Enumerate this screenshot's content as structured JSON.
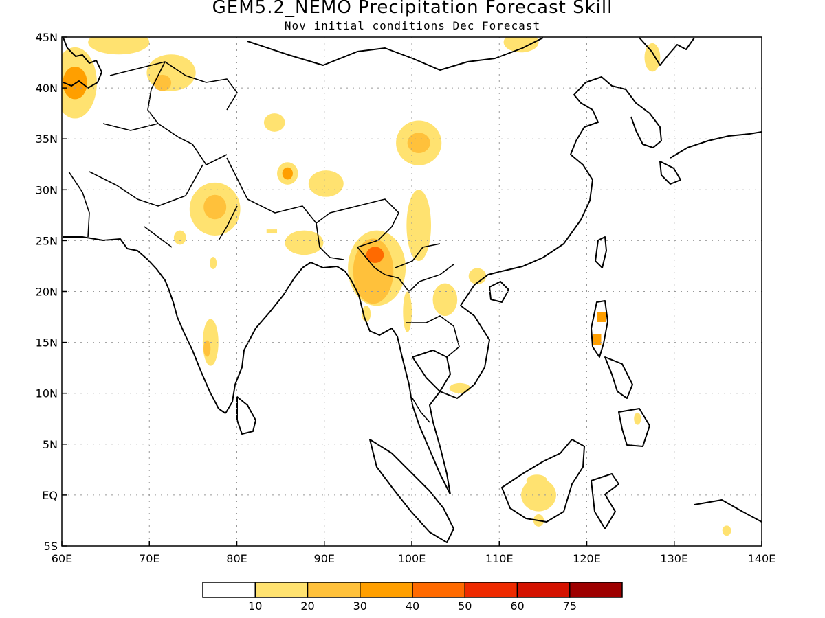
{
  "title": "GEM5.2_NEMO Precipitation Forecast Skill",
  "subtitle": "Nov initial conditions   Dec Forecast",
  "map": {
    "lon_range": [
      60,
      140
    ],
    "lat_range": [
      -5,
      45
    ],
    "x_ticks": [
      {
        "lon": 60,
        "label": "60E"
      },
      {
        "lon": 70,
        "label": "70E"
      },
      {
        "lon": 80,
        "label": "80E"
      },
      {
        "lon": 90,
        "label": "90E"
      },
      {
        "lon": 100,
        "label": "100E"
      },
      {
        "lon": 110,
        "label": "110E"
      },
      {
        "lon": 120,
        "label": "120E"
      },
      {
        "lon": 130,
        "label": "130E"
      },
      {
        "lon": 140,
        "label": "140E"
      }
    ],
    "y_ticks": [
      {
        "lat": 45,
        "label": "45N"
      },
      {
        "lat": 40,
        "label": "40N"
      },
      {
        "lat": 35,
        "label": "35N"
      },
      {
        "lat": 30,
        "label": "30N"
      },
      {
        "lat": 25,
        "label": "25N"
      },
      {
        "lat": 20,
        "label": "20N"
      },
      {
        "lat": 15,
        "label": "15N"
      },
      {
        "lat": 10,
        "label": "10N"
      },
      {
        "lat": 5,
        "label": "5N"
      },
      {
        "lat": 0,
        "label": "EQ"
      },
      {
        "lat": -5,
        "label": "5S"
      }
    ],
    "grid": true
  },
  "colorbar": {
    "colors": [
      "#ffffff",
      "#ffe270",
      "#ffc13b",
      "#ff9f00",
      "#ff6a00",
      "#ee2a00",
      "#d41200",
      "#9e0000"
    ],
    "labels": [
      "10",
      "20",
      "30",
      "40",
      "50",
      "60",
      "75"
    ]
  },
  "skill_regions": [
    {
      "lon": 61.5,
      "lat": 40.5,
      "rlon": 2.5,
      "rlat": 3.5,
      "level": 1
    },
    {
      "lon": 61.5,
      "lat": 40.5,
      "rlon": 1.4,
      "rlat": 1.6,
      "level": 3
    },
    {
      "lon": 66.5,
      "lat": 44.5,
      "rlon": 3.5,
      "rlat": 1.2,
      "level": 1
    },
    {
      "lon": 72.5,
      "lat": 41.5,
      "rlon": 2.8,
      "rlat": 1.8,
      "level": 1
    },
    {
      "lon": 71.5,
      "lat": 40.5,
      "rlon": 1.0,
      "rlat": 0.8,
      "level": 2
    },
    {
      "lon": 112.5,
      "lat": 44.5,
      "rlon": 2.0,
      "rlat": 1.0,
      "level": 1
    },
    {
      "lon": 127.5,
      "lat": 43.0,
      "rlon": 0.9,
      "rlat": 1.4,
      "level": 1
    },
    {
      "lon": 84.3,
      "lat": 36.6,
      "rlon": 1.2,
      "rlat": 0.9,
      "level": 1
    },
    {
      "lon": 100.8,
      "lat": 34.6,
      "rlon": 2.6,
      "rlat": 2.2,
      "level": 1
    },
    {
      "lon": 100.8,
      "lat": 34.6,
      "rlon": 1.3,
      "rlat": 1.0,
      "level": 2
    },
    {
      "lon": 85.8,
      "lat": 31.6,
      "rlon": 1.2,
      "rlat": 1.1,
      "level": 1
    },
    {
      "lon": 85.8,
      "lat": 31.6,
      "rlon": 0.6,
      "rlat": 0.6,
      "level": 3
    },
    {
      "lon": 90.2,
      "lat": 30.6,
      "rlon": 2.0,
      "rlat": 1.3,
      "level": 1
    },
    {
      "lon": 77.5,
      "lat": 28.1,
      "rlon": 2.9,
      "rlat": 2.6,
      "level": 1
    },
    {
      "lon": 77.5,
      "lat": 28.3,
      "rlon": 1.3,
      "rlat": 1.2,
      "level": 2
    },
    {
      "lon": 73.5,
      "lat": 25.3,
      "rlon": 0.7,
      "rlat": 0.7,
      "level": 1
    },
    {
      "lon": 87.7,
      "lat": 24.8,
      "rlon": 2.2,
      "rlat": 1.2,
      "level": 1
    },
    {
      "lon": 96.0,
      "lat": 22.3,
      "rlon": 3.3,
      "rlat": 3.7,
      "level": 1
    },
    {
      "lon": 95.6,
      "lat": 22.0,
      "rlon": 2.3,
      "rlat": 3.2,
      "level": 2
    },
    {
      "lon": 95.8,
      "lat": 23.6,
      "rlon": 1.0,
      "rlat": 0.8,
      "level": 4
    },
    {
      "lon": 100.8,
      "lat": 26.5,
      "rlon": 1.4,
      "rlat": 3.5,
      "level": 1
    },
    {
      "lon": 99.5,
      "lat": 18.0,
      "rlon": 0.5,
      "rlat": 2.0,
      "level": 1
    },
    {
      "lon": 103.8,
      "lat": 19.2,
      "rlon": 1.4,
      "rlat": 1.6,
      "level": 1
    },
    {
      "lon": 107.5,
      "lat": 21.5,
      "rlon": 1.0,
      "rlat": 0.8,
      "level": 1
    },
    {
      "lon": 77.0,
      "lat": 15.0,
      "rlon": 0.9,
      "rlat": 2.3,
      "level": 1
    },
    {
      "lon": 76.6,
      "lat": 14.4,
      "rlon": 0.4,
      "rlat": 0.8,
      "level": 2
    },
    {
      "lon": 114.5,
      "lat": 0.0,
      "rlon": 2.0,
      "rlat": 1.6,
      "level": 1
    },
    {
      "lon": 114.3,
      "lat": 1.4,
      "rlon": 1.2,
      "rlat": 0.6,
      "level": 1
    },
    {
      "lon": 114.5,
      "lat": -2.5,
      "rlon": 0.6,
      "rlat": 0.6,
      "level": 1
    },
    {
      "lon": 105.5,
      "lat": 10.5,
      "rlon": 1.2,
      "rlat": 0.5,
      "level": 1
    },
    {
      "lon": 125.8,
      "lat": 7.5,
      "rlon": 0.4,
      "rlat": 0.6,
      "level": 1
    },
    {
      "lon": 136.0,
      "lat": -3.5,
      "rlon": 0.5,
      "rlat": 0.5,
      "level": 1
    },
    {
      "lon": 94.8,
      "lat": 17.8,
      "rlon": 0.5,
      "rlat": 0.8,
      "level": 1
    },
    {
      "lon": 77.3,
      "lat": 22.8,
      "rlon": 0.4,
      "rlat": 0.6,
      "level": 1
    }
  ],
  "skill_boxes": [
    {
      "lon": 121.7,
      "lat": 17.5,
      "w": 1.0,
      "h": 1.0,
      "level": 3
    },
    {
      "lon": 121.2,
      "lat": 15.3,
      "w": 0.9,
      "h": 1.1,
      "level": 3
    },
    {
      "lon": 84.0,
      "lat": 25.9,
      "w": 1.2,
      "h": 0.4,
      "level": 1
    }
  ]
}
